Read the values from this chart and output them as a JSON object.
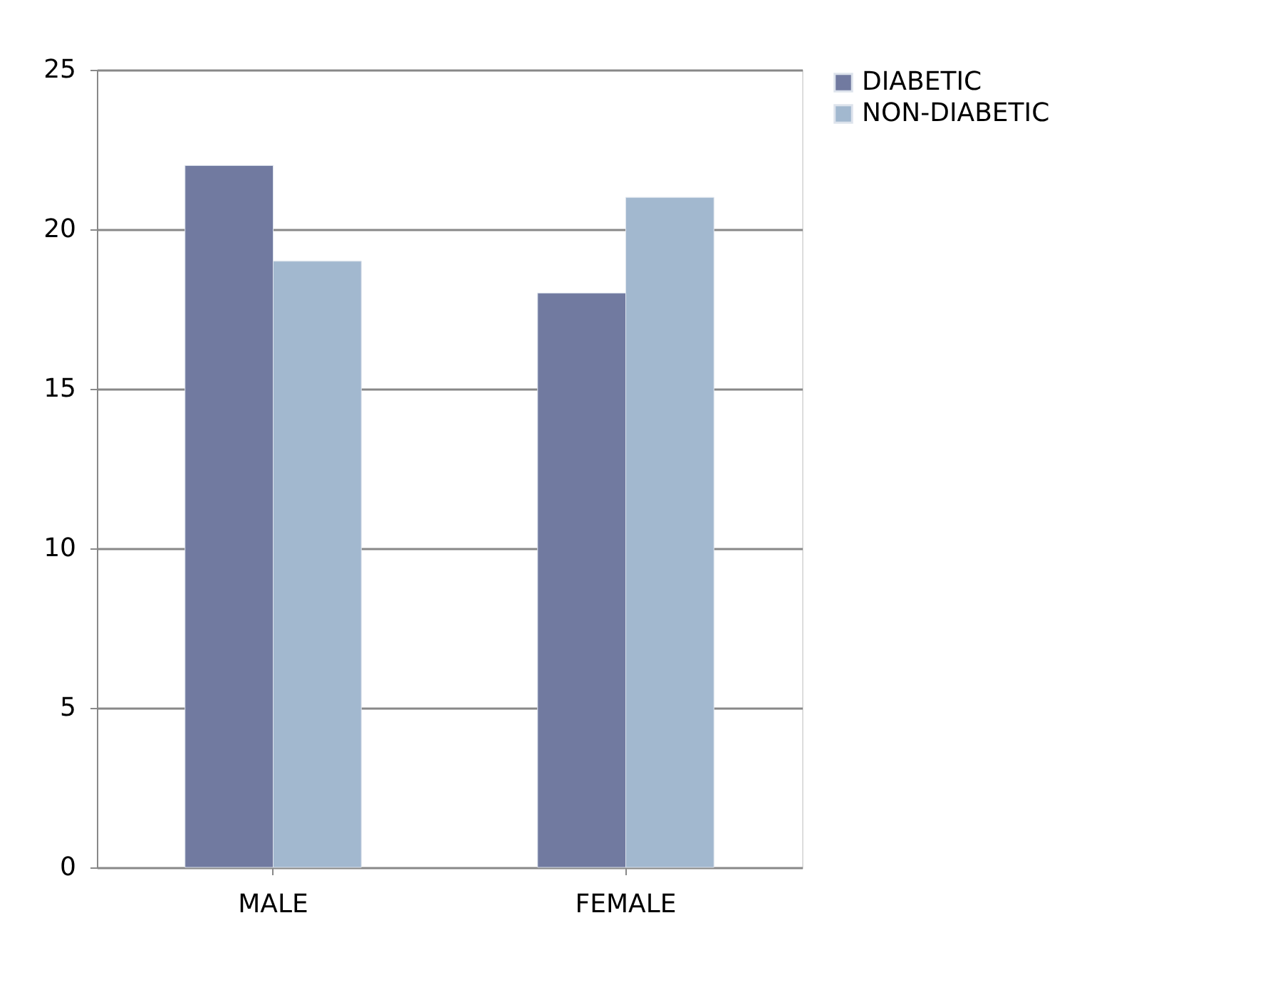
{
  "chart_data": {
    "type": "bar",
    "categories": [
      "MALE",
      "FEMALE"
    ],
    "series": [
      {
        "name": "DIABETIC",
        "color": "#717aa0",
        "values": [
          22,
          18
        ]
      },
      {
        "name": "NON-DIABETIC",
        "color": "#a2b8cf",
        "values": [
          19,
          21
        ]
      }
    ],
    "ylim": [
      0,
      25
    ],
    "yticks": [
      0,
      5,
      10,
      15,
      20,
      25
    ],
    "grid": "y",
    "legend": "right"
  }
}
